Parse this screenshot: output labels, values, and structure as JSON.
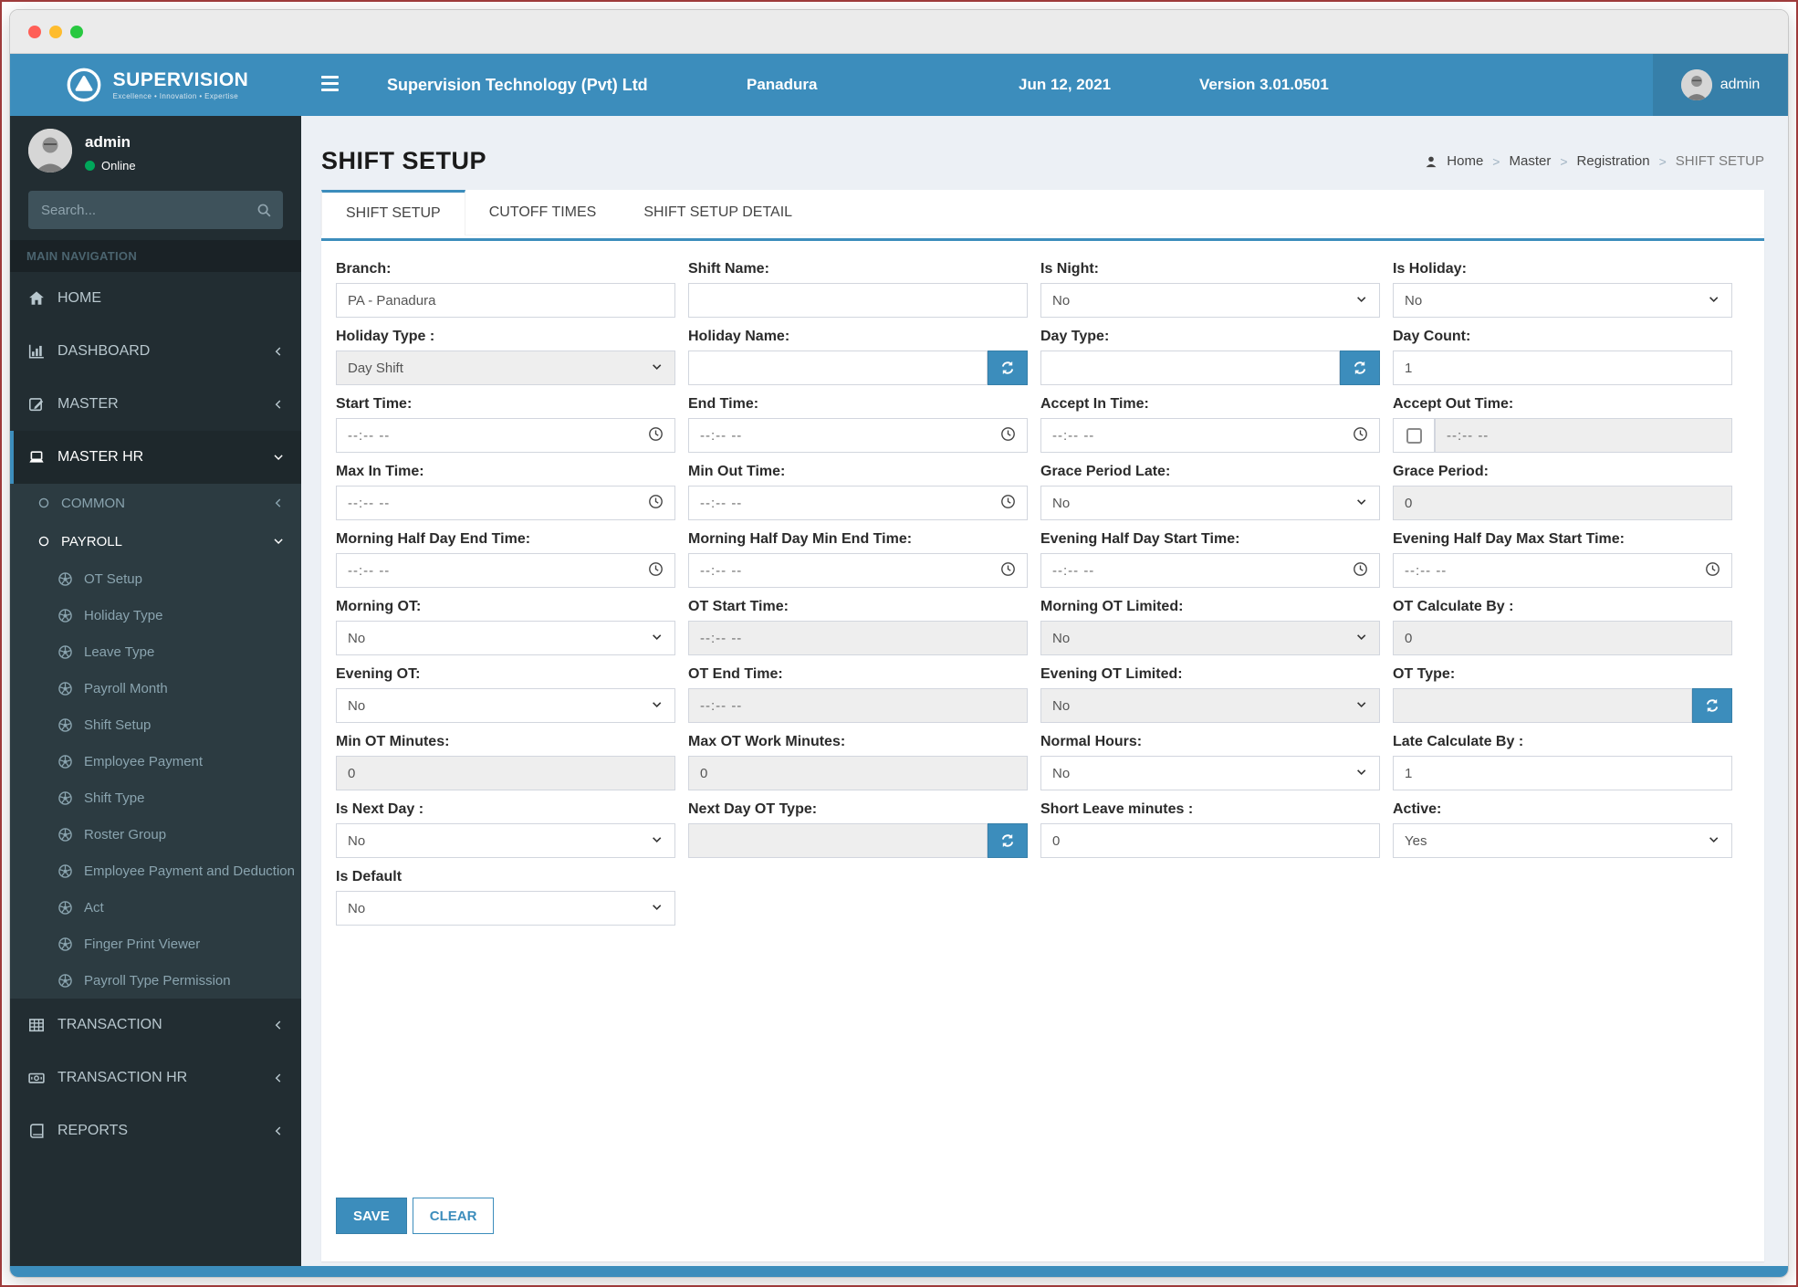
{
  "header": {
    "company": "Supervision Technology (Pvt) Ltd",
    "location": "Panadura",
    "date": "Jun 12, 2021",
    "version": "Version 3.01.0501",
    "user": "admin"
  },
  "logo": {
    "brand": "SUPERVISION",
    "tagline": "Excellence • Innovation • Expertise"
  },
  "user_panel": {
    "name": "admin",
    "status": "Online"
  },
  "search": {
    "placeholder": "Search..."
  },
  "sidebar": {
    "section_label": "MAIN NAVIGATION",
    "menu": [
      {
        "label": "HOME",
        "icon": "home"
      },
      {
        "label": "DASHBOARD",
        "icon": "chart",
        "chevron": "left"
      },
      {
        "label": "MASTER",
        "icon": "edit",
        "chevron": "left"
      },
      {
        "label": "MASTER HR",
        "icon": "laptop",
        "chevron": "down",
        "active": true,
        "children": [
          {
            "label": "COMMON",
            "icon": "circle",
            "chevron": "left"
          },
          {
            "label": "PAYROLL",
            "icon": "circle",
            "chevron": "down",
            "open": true,
            "children": [
              {
                "label": "OT Setup",
                "icon": "futbol"
              },
              {
                "label": "Holiday Type",
                "icon": "futbol"
              },
              {
                "label": "Leave Type",
                "icon": "futbol"
              },
              {
                "label": "Payroll Month",
                "icon": "futbol"
              },
              {
                "label": "Shift Setup",
                "icon": "futbol"
              },
              {
                "label": "Employee Payment",
                "icon": "futbol"
              },
              {
                "label": "Shift Type",
                "icon": "futbol"
              },
              {
                "label": "Roster Group",
                "icon": "futbol"
              },
              {
                "label": "Employee Payment and Deduction",
                "icon": "futbol"
              },
              {
                "label": "Act",
                "icon": "futbol"
              },
              {
                "label": "Finger Print Viewer",
                "icon": "futbol"
              },
              {
                "label": "Payroll Type Permission",
                "icon": "futbol"
              }
            ]
          }
        ]
      },
      {
        "label": "TRANSACTION",
        "icon": "table",
        "chevron": "left"
      },
      {
        "label": "TRANSACTION HR",
        "icon": "money",
        "chevron": "left"
      },
      {
        "label": "REPORTS",
        "icon": "book",
        "chevron": "left"
      }
    ]
  },
  "page": {
    "title": "SHIFT SETUP"
  },
  "breadcrumb": {
    "items": [
      "Home",
      "Master",
      "Registration",
      "SHIFT SETUP"
    ],
    "separator": ">"
  },
  "tabs": {
    "items": [
      "SHIFT SETUP",
      "CUTOFF TIMES",
      "SHIFT SETUP DETAIL"
    ],
    "active": "SHIFT SETUP"
  },
  "form": {
    "save_label": "SAVE",
    "clear_label": "CLEAR",
    "fields": [
      {
        "label": "Branch:",
        "type": "text",
        "value": "PA - Panadura"
      },
      {
        "label": "Shift Name:",
        "type": "text",
        "value": ""
      },
      {
        "label": "Is Night:",
        "type": "select",
        "value": "No"
      },
      {
        "label": "Is Holiday:",
        "type": "select",
        "value": "No"
      },
      {
        "label": "Holiday Type :",
        "type": "select",
        "value": "Day Shift",
        "disabled": true
      },
      {
        "label": "Holiday Name:",
        "type": "text_refresh",
        "value": ""
      },
      {
        "label": "Day Type:",
        "type": "text_refresh",
        "value": ""
      },
      {
        "label": "Day Count:",
        "type": "text",
        "value": "1"
      },
      {
        "label": "Start Time:",
        "type": "time",
        "placeholder": "--:-- --"
      },
      {
        "label": "End Time:",
        "type": "time",
        "placeholder": "--:-- --"
      },
      {
        "label": "Accept In Time:",
        "type": "time",
        "placeholder": "--:-- --"
      },
      {
        "label": "Accept Out Time:",
        "type": "checkbox_time",
        "placeholder": "--:-- --",
        "checked": false,
        "disabled": true
      },
      {
        "label": "Max In Time:",
        "type": "time",
        "placeholder": "--:-- --"
      },
      {
        "label": "Min Out Time:",
        "type": "time",
        "placeholder": "--:-- --"
      },
      {
        "label": "Grace Period Late:",
        "type": "select",
        "value": "No"
      },
      {
        "label": "Grace Period:",
        "type": "text",
        "value": "0",
        "disabled": true
      },
      {
        "label": "Morning Half Day End Time:",
        "type": "time",
        "placeholder": "--:-- --"
      },
      {
        "label": "Morning Half Day Min End Time:",
        "type": "time",
        "placeholder": "--:-- --"
      },
      {
        "label": "Evening Half Day Start Time:",
        "type": "time",
        "placeholder": "--:-- --"
      },
      {
        "label": "Evening Half Day Max Start Time:",
        "type": "time",
        "placeholder": "--:-- --"
      },
      {
        "label": "Morning OT:",
        "type": "select",
        "value": "No"
      },
      {
        "label": "OT Start Time:",
        "type": "time",
        "placeholder": "--:-- --",
        "disabled": true
      },
      {
        "label": "Morning OT Limited:",
        "type": "select",
        "value": "No",
        "disabled": true
      },
      {
        "label": "OT Calculate By :",
        "type": "text",
        "value": "0",
        "disabled": true
      },
      {
        "label": "Evening OT:",
        "type": "select",
        "value": "No"
      },
      {
        "label": "OT End Time:",
        "type": "time",
        "placeholder": "--:-- --",
        "disabled": true
      },
      {
        "label": "Evening OT Limited:",
        "type": "select",
        "value": "No",
        "disabled": true
      },
      {
        "label": "OT Type:",
        "type": "text_refresh",
        "value": "",
        "disabled": true
      },
      {
        "label": "Min OT Minutes:",
        "type": "text",
        "value": "0",
        "disabled": true
      },
      {
        "label": "Max OT Work Minutes:",
        "type": "text",
        "value": "0",
        "disabled": true
      },
      {
        "label": "Normal Hours:",
        "type": "select",
        "value": "No"
      },
      {
        "label": "Late Calculate By :",
        "type": "text",
        "value": "1"
      },
      {
        "label": "Is Next Day :",
        "type": "select",
        "value": "No"
      },
      {
        "label": "Next Day OT Type:",
        "type": "text_refresh",
        "value": "",
        "disabled": true
      },
      {
        "label": "Short Leave minutes :",
        "type": "text",
        "value": "0"
      },
      {
        "label": "Active:",
        "type": "select",
        "value": "Yes"
      },
      {
        "label": "Is Default",
        "type": "select",
        "value": "No"
      }
    ]
  },
  "colors": {
    "accent_blue": "#3c8dbc",
    "header_user_bg": "#367fa9",
    "sidebar_bg": "#222d32",
    "submenu_bg": "#2c3b41",
    "online_green": "#00a65a",
    "disabled_bg": "#eeeeee"
  }
}
